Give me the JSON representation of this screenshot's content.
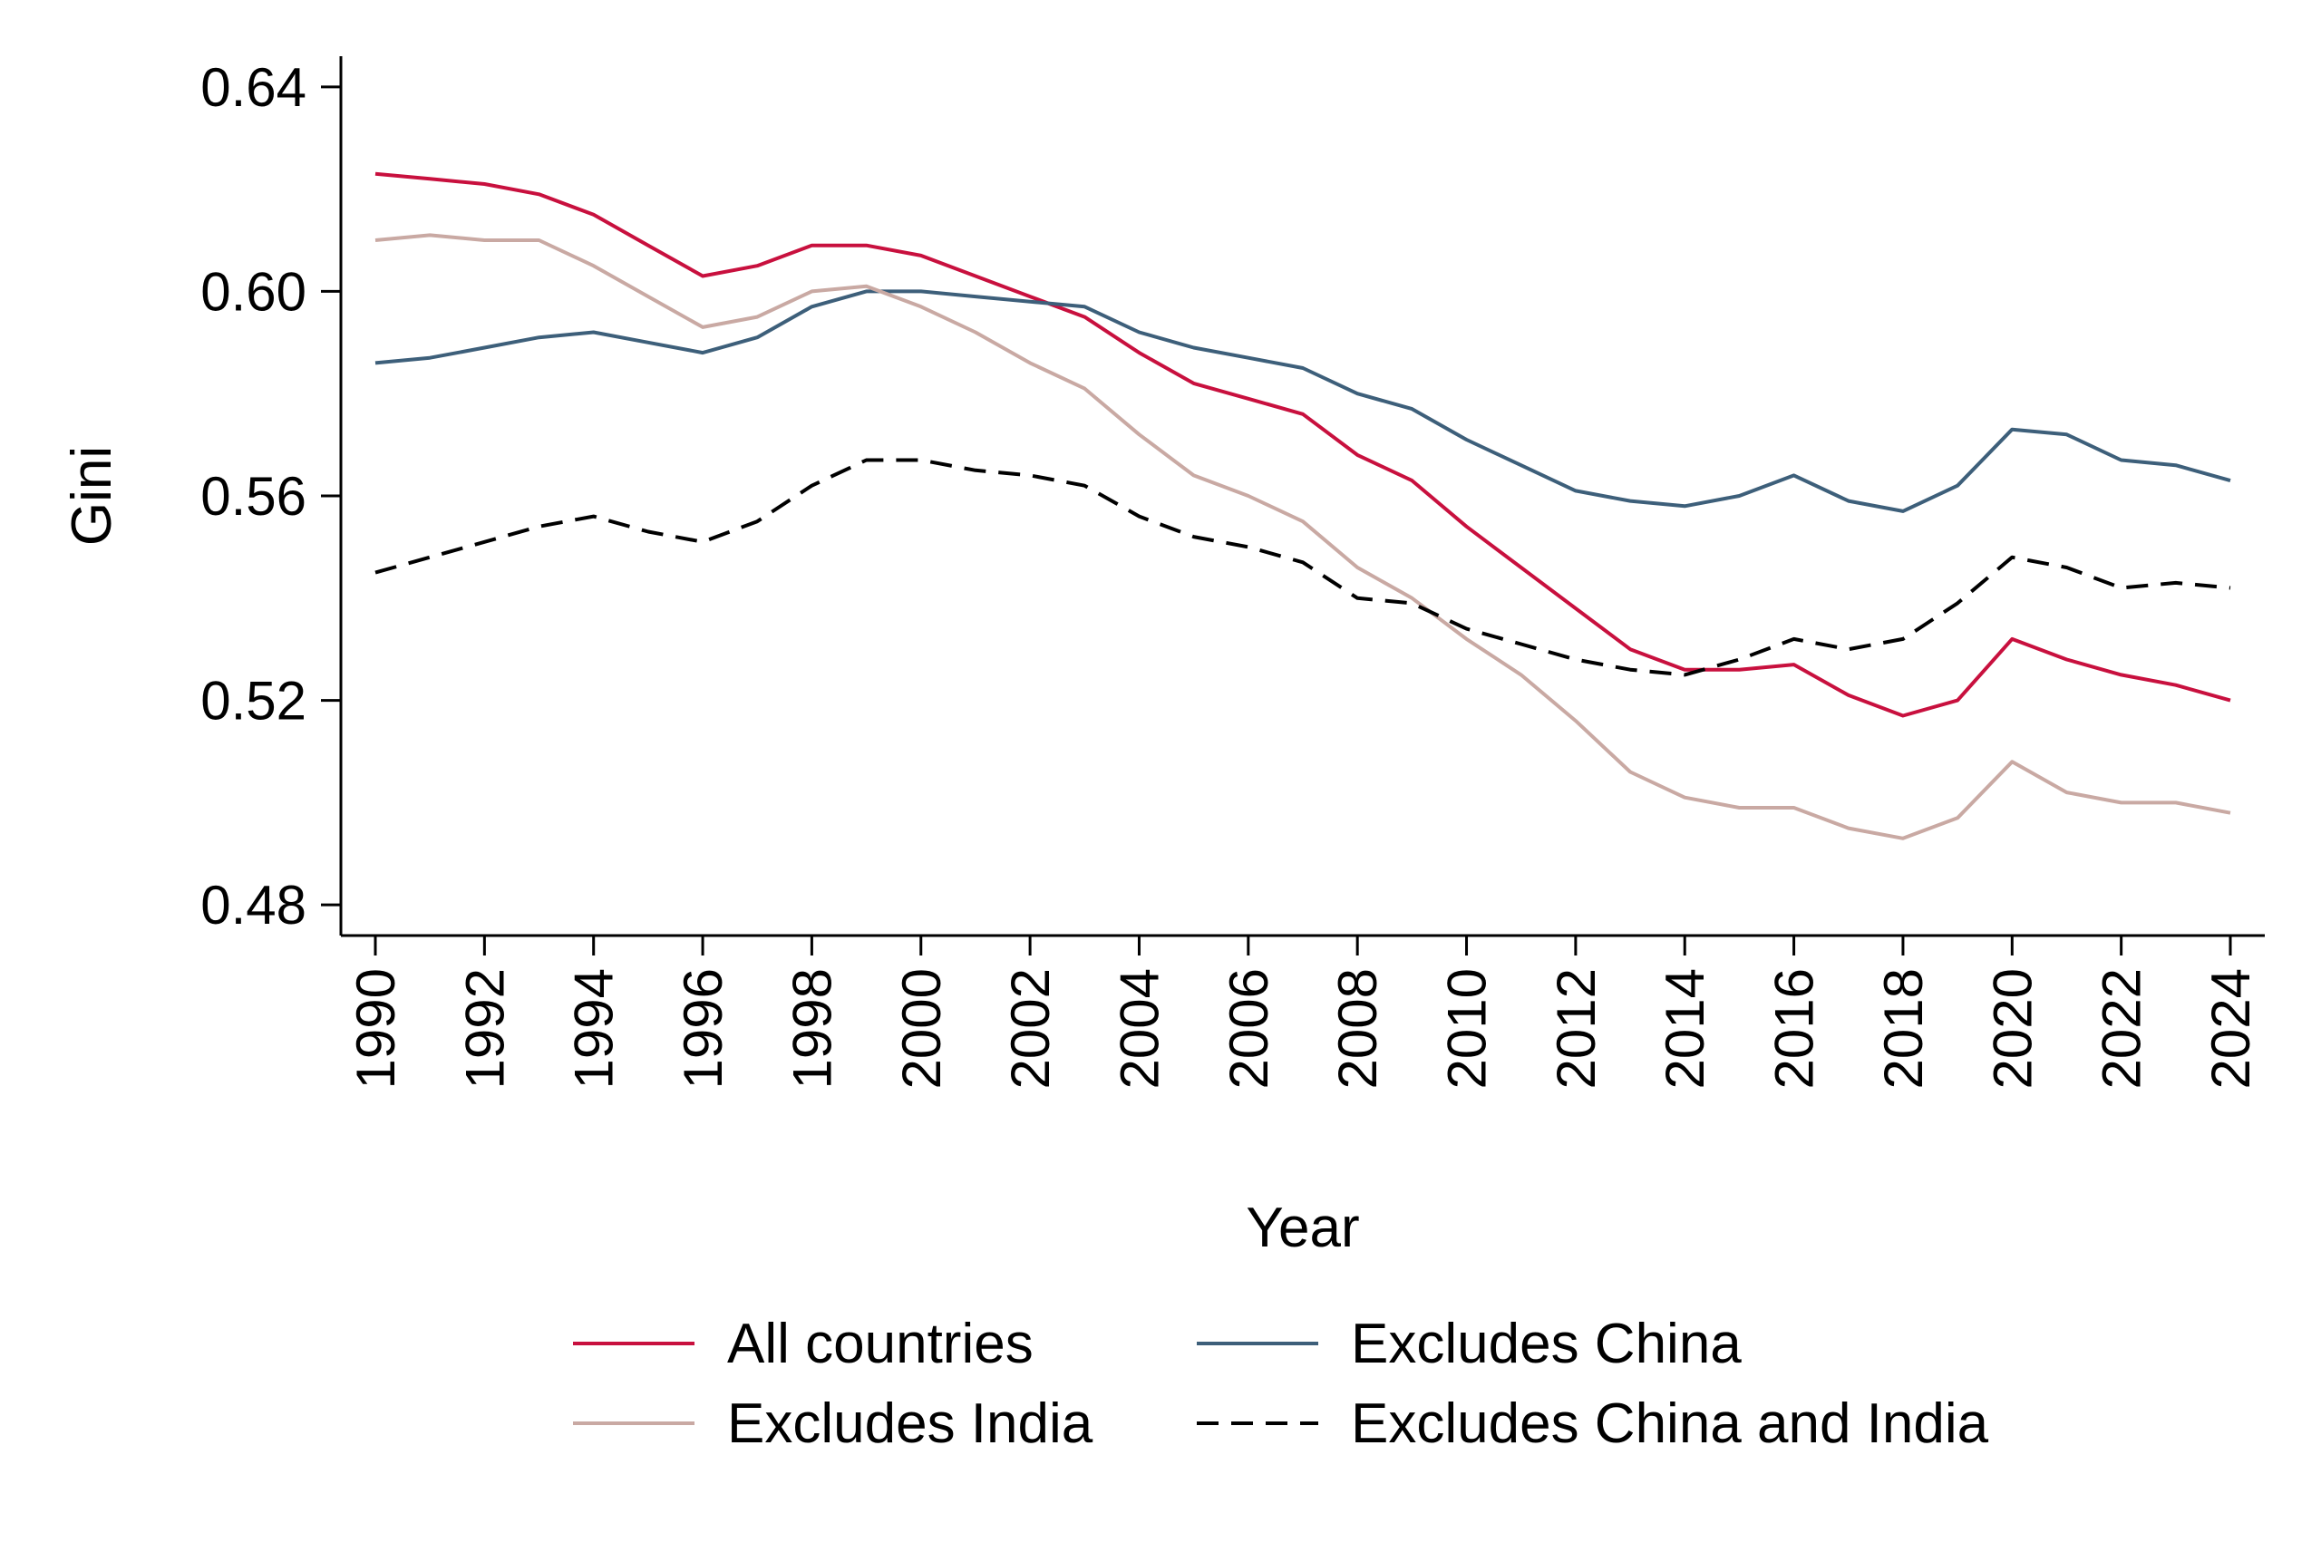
{
  "chart_data": {
    "type": "line",
    "title": "",
    "xlabel": "Year",
    "ylabel": "Gini",
    "xlim": [
      1990,
      2024
    ],
    "ylim": [
      0.474,
      0.646
    ],
    "y_ticks": [
      "0.48",
      "0.52",
      "0.56",
      "0.60",
      "0.64"
    ],
    "x_ticks": [
      "1990",
      "1992",
      "1994",
      "1996",
      "1998",
      "2000",
      "2002",
      "2004",
      "2006",
      "2008",
      "2010",
      "2012",
      "2014",
      "2016",
      "2018",
      "2020",
      "2022",
      "2024"
    ],
    "grid": false,
    "legend_position": "bottom",
    "x": [
      1990,
      1991,
      1992,
      1993,
      1994,
      1995,
      1996,
      1997,
      1998,
      1999,
      2000,
      2001,
      2002,
      2003,
      2004,
      2005,
      2006,
      2007,
      2008,
      2009,
      2010,
      2011,
      2012,
      2013,
      2014,
      2015,
      2016,
      2017,
      2018,
      2019,
      2020,
      2021,
      2022,
      2023,
      2024
    ],
    "series": [
      {
        "name": "All countries",
        "color": "#c8103e",
        "dash": "solid",
        "values": [
          0.623,
          0.622,
          0.621,
          0.619,
          0.615,
          0.609,
          0.603,
          0.605,
          0.609,
          0.609,
          0.607,
          0.603,
          0.599,
          0.595,
          0.588,
          0.582,
          0.579,
          0.576,
          0.568,
          0.563,
          0.554,
          0.546,
          0.538,
          0.53,
          0.526,
          0.526,
          0.527,
          0.521,
          0.517,
          0.52,
          0.532,
          0.528,
          0.525,
          0.523,
          0.52
        ]
      },
      {
        "name": "Excludes China",
        "color": "#3d5f7a",
        "dash": "solid",
        "values": [
          0.586,
          0.587,
          0.589,
          0.591,
          0.592,
          0.59,
          0.588,
          0.591,
          0.597,
          0.6,
          0.6,
          0.599,
          0.598,
          0.597,
          0.592,
          0.589,
          0.587,
          0.585,
          0.58,
          0.577,
          0.571,
          0.566,
          0.561,
          0.559,
          0.558,
          0.56,
          0.564,
          0.559,
          0.557,
          0.562,
          0.573,
          0.572,
          0.567,
          0.566,
          0.563
        ]
      },
      {
        "name": "Excludes India",
        "color": "#c9a9a3",
        "dash": "solid",
        "values": [
          0.61,
          0.611,
          0.61,
          0.61,
          0.605,
          0.599,
          0.593,
          0.595,
          0.6,
          0.601,
          0.597,
          0.592,
          0.586,
          0.581,
          0.572,
          0.564,
          0.56,
          0.555,
          0.546,
          0.54,
          0.532,
          0.525,
          0.516,
          0.506,
          0.501,
          0.499,
          0.499,
          0.495,
          0.493,
          0.497,
          0.508,
          0.502,
          0.5,
          0.5,
          0.498
        ]
      },
      {
        "name": "Excludes China and India",
        "color": "#000000",
        "dash": "dashed",
        "values": [
          0.545,
          0.548,
          0.551,
          0.554,
          0.556,
          0.553,
          0.551,
          0.555,
          0.562,
          0.567,
          0.567,
          0.565,
          0.564,
          0.562,
          0.556,
          0.552,
          0.55,
          0.547,
          0.54,
          0.539,
          0.534,
          0.531,
          0.528,
          0.526,
          0.525,
          0.528,
          0.532,
          0.53,
          0.532,
          0.539,
          0.548,
          0.546,
          0.542,
          0.543,
          0.542
        ]
      }
    ]
  }
}
